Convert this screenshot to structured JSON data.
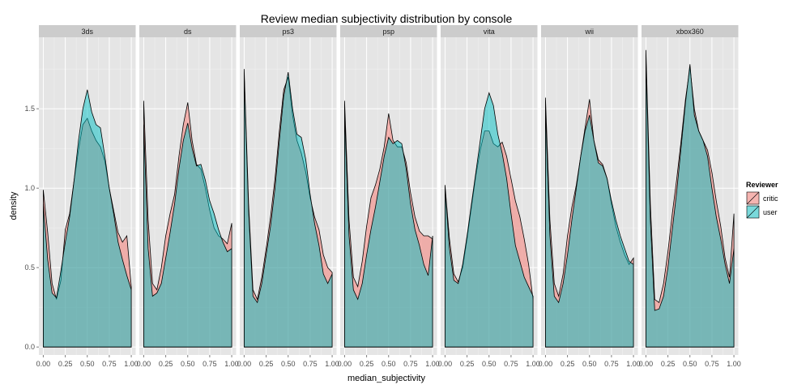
{
  "chart_data": {
    "type": "area",
    "title": "Review median subjectivity distribution by console",
    "xlabel": "median_subjectivity",
    "ylabel": "density",
    "xlim": [
      0,
      1
    ],
    "ylim": [
      -0.05,
      1.95
    ],
    "x_ticks": [
      0,
      0.25,
      0.5,
      0.75,
      1.0
    ],
    "x_tick_labels": [
      "0.00",
      "0.25",
      "0.50",
      "0.75",
      "1.00"
    ],
    "y_ticks": [
      0,
      0.5,
      1.0,
      1.5
    ],
    "y_tick_labels": [
      "0.0",
      "0.5",
      "1.0",
      "1.5"
    ],
    "grid": true,
    "legend": {
      "title": "Reviewer",
      "position": "right",
      "entries": [
        {
          "label": "critic",
          "color": "#F8766D"
        },
        {
          "label": "user",
          "color": "#00BFC4"
        }
      ]
    },
    "x": [
      0.0,
      0.05,
      0.1,
      0.15,
      0.2,
      0.25,
      0.3,
      0.35,
      0.4,
      0.45,
      0.5,
      0.55,
      0.6,
      0.65,
      0.7,
      0.75,
      0.8,
      0.85,
      0.9,
      0.95,
      1.0
    ],
    "panels": [
      {
        "name": "3ds",
        "series": [
          {
            "name": "critic",
            "values": [
              0.99,
              0.72,
              0.4,
              0.3,
              0.42,
              0.74,
              0.84,
              1.05,
              1.24,
              1.4,
              1.44,
              1.36,
              1.3,
              1.26,
              1.17,
              1.0,
              0.86,
              0.72,
              0.66,
              0.7,
              0.38
            ]
          },
          {
            "name": "user",
            "values": [
              0.9,
              0.55,
              0.34,
              0.31,
              0.48,
              0.66,
              0.82,
              1.05,
              1.3,
              1.5,
              1.62,
              1.48,
              1.4,
              1.38,
              1.2,
              1.0,
              0.84,
              0.66,
              0.55,
              0.45,
              0.36
            ]
          }
        ]
      },
      {
        "name": "ds",
        "series": [
          {
            "name": "critic",
            "values": [
              1.55,
              0.8,
              0.4,
              0.36,
              0.5,
              0.7,
              0.84,
              0.96,
              1.2,
              1.4,
              1.54,
              1.3,
              1.15,
              1.12,
              1.0,
              0.86,
              0.75,
              0.7,
              0.68,
              0.65,
              0.78
            ]
          },
          {
            "name": "user",
            "values": [
              1.4,
              0.62,
              0.32,
              0.34,
              0.4,
              0.56,
              0.72,
              0.9,
              1.12,
              1.3,
              1.41,
              1.25,
              1.14,
              1.15,
              1.05,
              0.92,
              0.84,
              0.74,
              0.66,
              0.6,
              0.62
            ]
          }
        ]
      },
      {
        "name": "ps3",
        "series": [
          {
            "name": "critic",
            "values": [
              1.75,
              0.9,
              0.36,
              0.3,
              0.44,
              0.62,
              0.82,
              1.06,
              1.36,
              1.62,
              1.7,
              1.46,
              1.3,
              1.22,
              1.1,
              0.94,
              0.82,
              0.74,
              0.58,
              0.5,
              0.47
            ]
          },
          {
            "name": "user",
            "values": [
              1.72,
              0.86,
              0.32,
              0.28,
              0.4,
              0.58,
              0.76,
              1.0,
              1.3,
              1.58,
              1.73,
              1.5,
              1.34,
              1.32,
              1.18,
              0.96,
              0.78,
              0.64,
              0.46,
              0.4,
              0.46
            ]
          }
        ]
      },
      {
        "name": "psp",
        "series": [
          {
            "name": "critic",
            "values": [
              1.55,
              0.8,
              0.44,
              0.38,
              0.54,
              0.76,
              0.94,
              1.02,
              1.12,
              1.26,
              1.47,
              1.3,
              1.26,
              1.26,
              1.16,
              0.97,
              0.82,
              0.73,
              0.7,
              0.7,
              0.68
            ]
          },
          {
            "name": "user",
            "values": [
              1.47,
              0.7,
              0.36,
              0.3,
              0.4,
              0.58,
              0.74,
              0.88,
              1.04,
              1.2,
              1.32,
              1.28,
              1.3,
              1.28,
              1.12,
              0.9,
              0.74,
              0.64,
              0.52,
              0.45,
              0.7
            ]
          }
        ]
      },
      {
        "name": "vita",
        "series": [
          {
            "name": "critic",
            "values": [
              1.02,
              0.68,
              0.46,
              0.41,
              0.5,
              0.68,
              0.88,
              1.08,
              1.24,
              1.36,
              1.36,
              1.28,
              1.26,
              1.29,
              1.2,
              1.06,
              0.92,
              0.82,
              0.68,
              0.52,
              0.3
            ]
          },
          {
            "name": "user",
            "values": [
              1.0,
              0.62,
              0.42,
              0.4,
              0.52,
              0.7,
              0.9,
              1.1,
              1.3,
              1.5,
              1.6,
              1.52,
              1.34,
              1.22,
              1.06,
              0.84,
              0.64,
              0.54,
              0.44,
              0.38,
              0.32
            ]
          }
        ]
      },
      {
        "name": "wii",
        "series": [
          {
            "name": "critic",
            "values": [
              1.57,
              0.8,
              0.4,
              0.32,
              0.46,
              0.7,
              0.88,
              1.02,
              1.2,
              1.38,
              1.56,
              1.3,
              1.18,
              1.15,
              1.06,
              0.9,
              0.76,
              0.66,
              0.58,
              0.52,
              0.56
            ]
          },
          {
            "name": "user",
            "values": [
              1.5,
              0.7,
              0.32,
              0.28,
              0.4,
              0.58,
              0.8,
              1.0,
              1.2,
              1.36,
              1.46,
              1.3,
              1.16,
              1.14,
              1.06,
              0.92,
              0.8,
              0.7,
              0.62,
              0.54,
              0.52
            ]
          }
        ]
      },
      {
        "name": "xbox360",
        "series": [
          {
            "name": "critic",
            "values": [
              1.87,
              0.9,
              0.3,
              0.28,
              0.4,
              0.6,
              0.84,
              1.06,
              1.3,
              1.56,
              1.76,
              1.5,
              1.36,
              1.3,
              1.24,
              1.1,
              0.92,
              0.76,
              0.56,
              0.44,
              0.84
            ]
          },
          {
            "name": "user",
            "values": [
              1.82,
              0.8,
              0.23,
              0.24,
              0.32,
              0.5,
              0.74,
              0.98,
              1.26,
              1.54,
              1.78,
              1.46,
              1.36,
              1.3,
              1.2,
              1.0,
              0.82,
              0.68,
              0.52,
              0.4,
              0.62
            ]
          }
        ]
      }
    ]
  }
}
